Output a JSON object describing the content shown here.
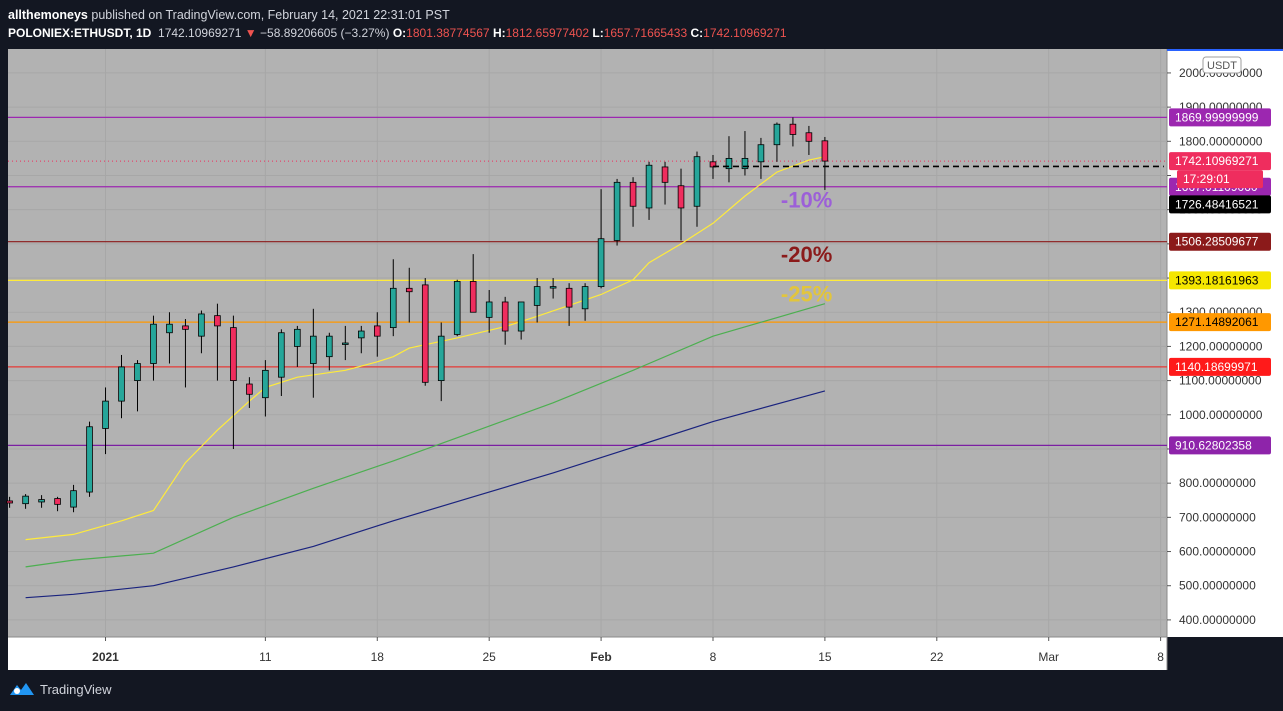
{
  "header": {
    "author": "allthemoneys",
    "published": "published on TradingView.com, February 14, 2021 22:31:01 PST",
    "symbol": "POLONIEX:ETHUSDT, 1D",
    "last": "1742.10969271",
    "change_arrow": "▼",
    "change": "−58.89206605 (−3.27%)",
    "o_label": "O:",
    "o": "1801.38774567",
    "h_label": "H:",
    "h": "1812.65977402",
    "l_label": "L:",
    "l": "1657.71665433",
    "c_label": "C:",
    "c": "1742.10969271"
  },
  "footer": {
    "brand": "TradingView"
  },
  "colors": {
    "background": "#131722",
    "plot": "#b2b2b2",
    "up": "#26a69a",
    "down": "#ef2d5e",
    "ema_short": "#ffeb3b",
    "ema_mid": "#4caf50",
    "ema_long": "#1a237e"
  },
  "chart_data": {
    "type": "candlestick",
    "currency_badge": "USDT",
    "ylim": [
      350,
      2070
    ],
    "y_ticks": [
      {
        "v": 400,
        "label": "400.00000000"
      },
      {
        "v": 500,
        "label": "500.00000000"
      },
      {
        "v": 600,
        "label": "600.00000000"
      },
      {
        "v": 700,
        "label": "700.00000000"
      },
      {
        "v": 800,
        "label": "800.00000000"
      },
      {
        "v": 900,
        "label": "900.00000000"
      },
      {
        "v": 1000,
        "label": "1000.00000000"
      },
      {
        "v": 1100,
        "label": "1100.00000000"
      },
      {
        "v": 1200,
        "label": "1200.00000000"
      },
      {
        "v": 1300,
        "label": "1300.00000000"
      },
      {
        "v": 1400,
        "label": "1400.00000000"
      },
      {
        "v": 1500,
        "label": "1500.00000000"
      },
      {
        "v": 1600,
        "label": "1600.00000000"
      },
      {
        "v": 1700,
        "label": "1700.00000000"
      },
      {
        "v": 1800,
        "label": "1800.00000000"
      },
      {
        "v": 1900,
        "label": "1900.00000000"
      },
      {
        "v": 2000,
        "label": "2000.00000000"
      }
    ],
    "x_ticks": [
      {
        "day": 2,
        "label": "2021",
        "bold": true
      },
      {
        "day": 12,
        "label": "11"
      },
      {
        "day": 19,
        "label": "18"
      },
      {
        "day": 26,
        "label": "25"
      },
      {
        "day": 33,
        "label": "Feb",
        "bold": true
      },
      {
        "day": 40,
        "label": "8"
      },
      {
        "day": 47,
        "label": "15"
      },
      {
        "day": 54,
        "label": "22"
      },
      {
        "day": 61,
        "label": "Mar"
      },
      {
        "day": 68,
        "label": "8"
      }
    ],
    "x_range_days": [
      -4.1,
      68.4
    ],
    "candles": [
      [
        632,
        655,
        620,
        640
      ],
      [
        650,
        705,
        645,
        695
      ],
      [
        700,
        750,
        695,
        740
      ],
      [
        748,
        760,
        728,
        742
      ],
      [
        740,
        768,
        725,
        762
      ],
      [
        745,
        765,
        728,
        752
      ],
      [
        755,
        760,
        718,
        738
      ],
      [
        730,
        795,
        715,
        778
      ],
      [
        774,
        980,
        760,
        965
      ],
      [
        960,
        1080,
        885,
        1040
      ],
      [
        1040,
        1175,
        990,
        1140
      ],
      [
        1100,
        1160,
        1010,
        1150
      ],
      [
        1150,
        1290,
        1100,
        1265
      ],
      [
        1240,
        1300,
        1150,
        1265
      ],
      [
        1260,
        1280,
        1080,
        1250
      ],
      [
        1230,
        1305,
        1180,
        1295
      ],
      [
        1290,
        1325,
        1100,
        1260
      ],
      [
        1255,
        1290,
        900,
        1100
      ],
      [
        1090,
        1110,
        1020,
        1060
      ],
      [
        1050,
        1160,
        995,
        1130
      ],
      [
        1110,
        1250,
        1055,
        1240
      ],
      [
        1200,
        1260,
        1140,
        1250
      ],
      [
        1150,
        1310,
        1050,
        1230
      ],
      [
        1170,
        1240,
        1130,
        1230
      ],
      [
        1210,
        1260,
        1160,
        1210
      ],
      [
        1225,
        1260,
        1180,
        1245
      ],
      [
        1260,
        1300,
        1170,
        1230
      ],
      [
        1255,
        1455,
        1230,
        1370
      ],
      [
        1370,
        1430,
        1270,
        1360
      ],
      [
        1380,
        1400,
        1085,
        1095
      ],
      [
        1100,
        1270,
        1040,
        1230
      ],
      [
        1235,
        1395,
        1230,
        1390
      ],
      [
        1390,
        1470,
        1310,
        1300
      ],
      [
        1285,
        1365,
        1240,
        1330
      ],
      [
        1330,
        1345,
        1205,
        1245
      ],
      [
        1245,
        1330,
        1220,
        1330
      ],
      [
        1320,
        1400,
        1270,
        1375
      ],
      [
        1375,
        1400,
        1340,
        1375
      ],
      [
        1370,
        1385,
        1260,
        1315
      ],
      [
        1310,
        1385,
        1275,
        1375
      ],
      [
        1375,
        1660,
        1370,
        1515
      ],
      [
        1510,
        1690,
        1495,
        1680
      ],
      [
        1680,
        1695,
        1550,
        1610
      ],
      [
        1605,
        1740,
        1570,
        1730
      ],
      [
        1725,
        1740,
        1615,
        1680
      ],
      [
        1670,
        1720,
        1510,
        1605
      ],
      [
        1610,
        1770,
        1550,
        1755
      ],
      [
        1740,
        1760,
        1690,
        1725
      ],
      [
        1720,
        1815,
        1680,
        1750
      ],
      [
        1720,
        1830,
        1700,
        1750
      ],
      [
        1740,
        1810,
        1690,
        1790
      ],
      [
        1790,
        1855,
        1740,
        1850
      ],
      [
        1850,
        1870,
        1785,
        1820
      ],
      [
        1825,
        1845,
        1760,
        1800
      ],
      [
        1801.39,
        1812.66,
        1657.72,
        1742.11
      ]
    ],
    "series": [
      {
        "name": "",
        "color": "#ffeb3b",
        "points": [
          [
            -3,
            635
          ],
          [
            0,
            650
          ],
          [
            3,
            690
          ],
          [
            5,
            720
          ],
          [
            7,
            860
          ],
          [
            9,
            955
          ],
          [
            11,
            1040
          ],
          [
            12,
            1080
          ],
          [
            14,
            1110
          ],
          [
            17,
            1130
          ],
          [
            19,
            1155
          ],
          [
            20,
            1170
          ],
          [
            21,
            1195
          ],
          [
            24,
            1225
          ],
          [
            27,
            1258
          ],
          [
            29,
            1288
          ],
          [
            31,
            1320
          ],
          [
            33,
            1352
          ],
          [
            35,
            1395
          ],
          [
            36,
            1445
          ],
          [
            38,
            1500
          ],
          [
            40,
            1560
          ],
          [
            42,
            1640
          ],
          [
            44,
            1710
          ],
          [
            46,
            1745
          ],
          [
            47,
            1755
          ]
        ]
      },
      {
        "name": "",
        "color": "#4caf50",
        "points": [
          [
            -3,
            555
          ],
          [
            0,
            575
          ],
          [
            5,
            595
          ],
          [
            10,
            700
          ],
          [
            15,
            785
          ],
          [
            20,
            865
          ],
          [
            25,
            950
          ],
          [
            30,
            1035
          ],
          [
            35,
            1130
          ],
          [
            40,
            1230
          ],
          [
            47,
            1325
          ]
        ]
      },
      {
        "name": "",
        "color": "#1a237e",
        "points": [
          [
            -3,
            465
          ],
          [
            0,
            475
          ],
          [
            5,
            500
          ],
          [
            10,
            555
          ],
          [
            15,
            615
          ],
          [
            20,
            690
          ],
          [
            25,
            760
          ],
          [
            30,
            830
          ],
          [
            35,
            905
          ],
          [
            40,
            980
          ],
          [
            47,
            1070
          ]
        ]
      }
    ],
    "h_lines": [
      {
        "v": 1869.99999999,
        "label": "1869.99999999",
        "color": "#9c27b0",
        "badge": "#9c27b0"
      },
      {
        "v": 1667.0110906,
        "label": "1667.01109060",
        "color": "#9c27b0",
        "badge": "#9c27b0"
      },
      {
        "v": 1506.28509677,
        "label": "1506.28509677",
        "color": "#8b1a1a",
        "badge": "#8b1a1a"
      },
      {
        "v": 1393.18161963,
        "label": "1393.18161963",
        "color": "#ffeb3b",
        "badge": "#f5e600",
        "text": "#000000"
      },
      {
        "v": 1271.14892061,
        "label": "1271.14892061",
        "color": "#ff9800",
        "badge": "#ff9800",
        "text": "#000000"
      },
      {
        "v": 1140.18699971,
        "label": "1140.18699971",
        "color": "#e53935",
        "badge": "#ff1a1a"
      },
      {
        "v": 910.62802358,
        "label": "910.62802358",
        "color": "#7b1fa2",
        "badge": "#8e24aa"
      }
    ],
    "last_price": {
      "v": 1742.10969271,
      "label": "1742.10969271",
      "countdown": "17:29:01",
      "color": "#ef2d5e"
    },
    "dashed_level": {
      "v": 1726.48416521,
      "label": "1726.48416521",
      "from_day": 40,
      "to_day": 68.2
    },
    "annotations": [
      {
        "text": "-10%",
        "day": 44,
        "v": 1630,
        "color": "#9c5fd8"
      },
      {
        "text": "-20%",
        "day": 44,
        "v": 1470,
        "color": "#8b1a1a"
      },
      {
        "text": "-25%",
        "day": 44,
        "v": 1355,
        "color": "#e2c53c"
      }
    ]
  }
}
